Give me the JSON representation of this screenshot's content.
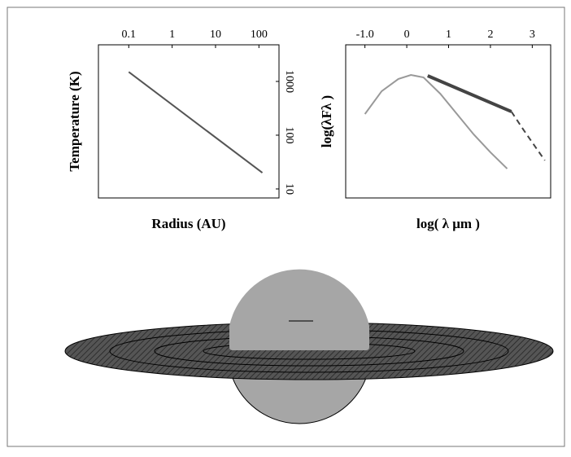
{
  "chart_data": [
    {
      "type": "line",
      "x_label": "Radius (AU)",
      "y_label": "Temperature (K)",
      "log_x": true,
      "log_y": true,
      "x_axis_position": "top",
      "y_axis_position": "right",
      "xlim": [
        0.02,
        290
      ],
      "ylim": [
        6.8,
        4800
      ],
      "xticks": [
        0.1,
        1,
        10,
        100
      ],
      "yticks": [
        10,
        100,
        1000
      ],
      "series": [
        {
          "color": "#555555",
          "width": 2,
          "x": [
            0.1,
            120
          ],
          "values": [
            1500,
            20
          ]
        }
      ]
    },
    {
      "type": "line",
      "x_label": "log( λ μm )",
      "y_label": "log(λFλ )",
      "x_axis_position": "top",
      "xlim": [
        -1.46,
        3.44
      ],
      "ylim": [
        0,
        10
      ],
      "xticks": [
        {
          "value": -1,
          "label": "-1.0"
        },
        0,
        1,
        2,
        3
      ],
      "series": [
        {
          "color": "#999999",
          "width": 2,
          "x": [
            -1.0,
            -0.6,
            -0.2,
            0.1,
            0.4,
            0.8,
            1.2,
            1.6,
            2.0,
            2.4
          ],
          "values": [
            5.48,
            6.97,
            7.77,
            8.03,
            7.87,
            6.81,
            5.48,
            4.15,
            2.98,
            1.91
          ]
        },
        {
          "color": "#444444",
          "width": 4,
          "x": [
            0.5,
            2.5
          ],
          "values": [
            7.98,
            5.64
          ]
        },
        {
          "color": "#444444",
          "width": 2,
          "dash": true,
          "x": [
            2.5,
            2.8,
            3.3
          ],
          "values": [
            5.64,
            4.41,
            2.45
          ]
        }
      ]
    }
  ]
}
